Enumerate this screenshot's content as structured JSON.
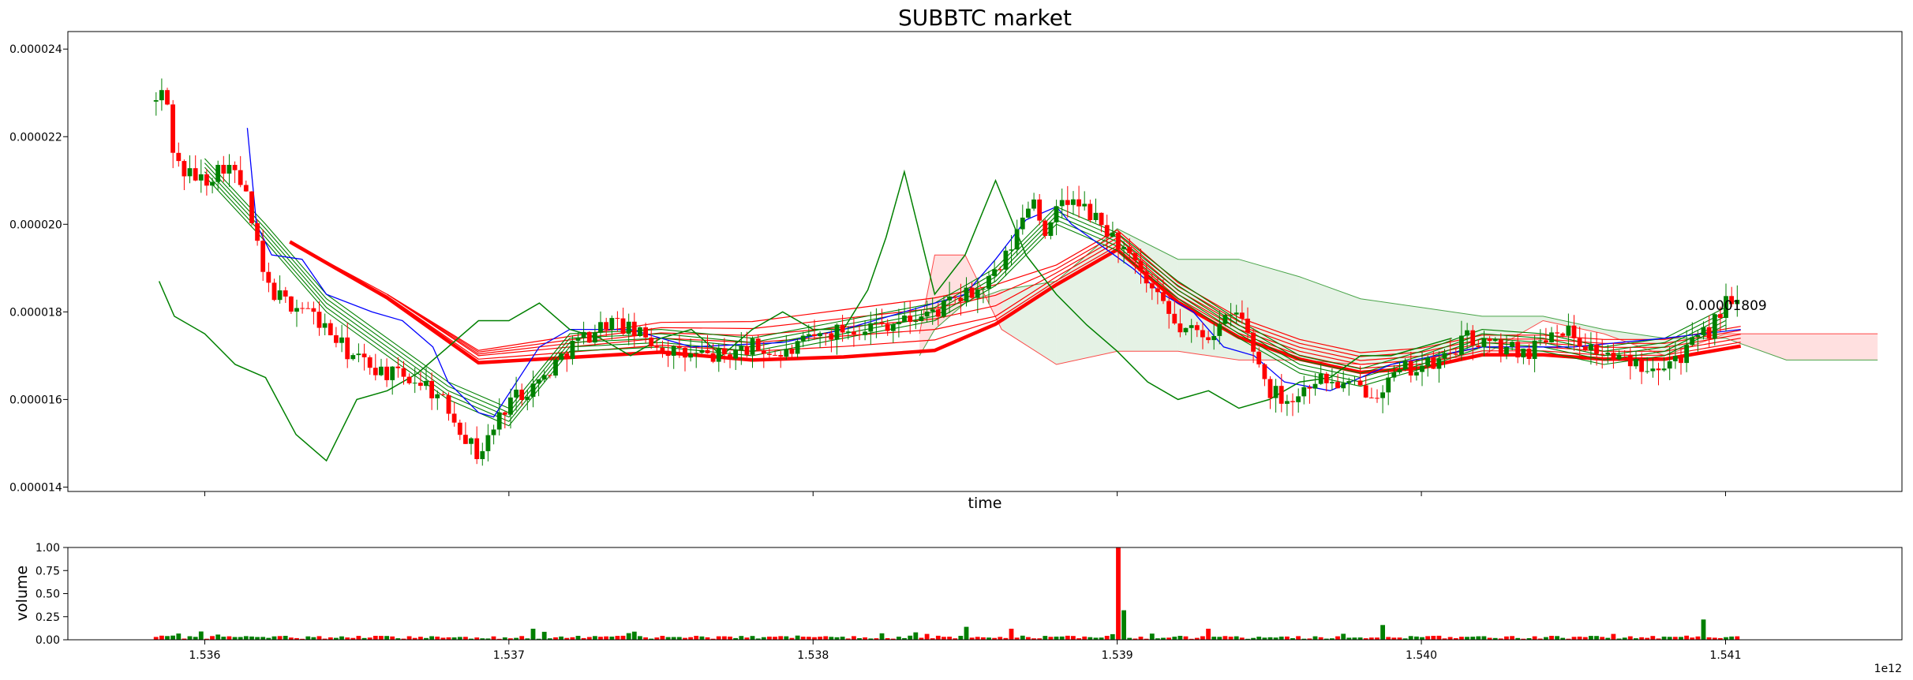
{
  "chart_data": [
    {
      "type": "candlestick",
      "title": "SUBBTC market",
      "xlabel": "time",
      "ylabel": "",
      "x_offset_label": "1e12",
      "xlim": [
        1.53555,
        1.54158
      ],
      "ylim": [
        1.39e-05,
        2.44e-05
      ],
      "xticks": [
        1.536,
        1.537,
        1.538,
        1.539,
        1.54,
        1.541
      ],
      "xtick_labels": [
        "1.536",
        "1.537",
        "1.538",
        "1.539",
        "1.540",
        "1.541"
      ],
      "yticks": [
        1.4e-05,
        1.6e-05,
        1.8e-05,
        2e-05,
        2.2e-05,
        2.4e-05
      ],
      "ytick_labels": [
        "0.000014",
        "0.000016",
        "0.000018",
        "0.000020",
        "0.000022",
        "0.000024"
      ],
      "last_price_label": "0.00001809",
      "colors": {
        "up": "#008000",
        "down": "#ff0000",
        "kijun": "#0000ff",
        "chikou": "#008000",
        "ema_fast": "#008000",
        "ema_slow": "#ff0000",
        "cloud_bull": "#008000",
        "cloud_bear": "#ff0000"
      },
      "close_path": {
        "x": [
          1.53584,
          1.53587,
          1.5359,
          1.53593,
          1.536,
          1.53607,
          1.53613,
          1.5362,
          1.53627,
          1.53633,
          1.5364,
          1.53648,
          1.5366,
          1.53672,
          1.5368,
          1.5369,
          1.537,
          1.5371,
          1.5372,
          1.53733,
          1.53745,
          1.53757,
          1.5377,
          1.5378,
          1.5379,
          1.538,
          1.5381,
          1.5382,
          1.5383,
          1.5384,
          1.53848,
          1.53855,
          1.53862,
          1.53867,
          1.53872,
          1.53877,
          1.53882,
          1.5389,
          1.539,
          1.5391,
          1.5392,
          1.5393,
          1.5394,
          1.5395,
          1.53958,
          1.53965,
          1.53975,
          1.53985,
          1.53995,
          1.54005,
          1.54015,
          1.54025,
          1.54035,
          1.54045,
          1.54055,
          1.54065,
          1.54075,
          1.54085,
          1.54095,
          1.541,
          1.54105
        ],
        "y": [
          2.28e-05,
          2.31e-05,
          2.15e-05,
          2.12e-05,
          2.1e-05,
          2.14e-05,
          2.08e-05,
          1.86e-05,
          1.82e-05,
          1.81e-05,
          1.76e-05,
          1.7e-05,
          1.66e-05,
          1.64e-05,
          1.58e-05,
          1.47e-05,
          1.6e-05,
          1.64e-05,
          1.72e-05,
          1.78e-05,
          1.74e-05,
          1.7e-05,
          1.7e-05,
          1.72e-05,
          1.7e-05,
          1.74e-05,
          1.76e-05,
          1.77e-05,
          1.78e-05,
          1.8e-05,
          1.83e-05,
          1.85e-05,
          1.9e-05,
          1.98e-05,
          2.07e-05,
          1.97e-05,
          2.06e-05,
          2.03e-05,
          1.96e-05,
          1.86e-05,
          1.76e-05,
          1.75e-05,
          1.8e-05,
          1.62e-05,
          1.6e-05,
          1.65e-05,
          1.63e-05,
          1.62e-05,
          1.67e-05,
          1.68e-05,
          1.74e-05,
          1.72e-05,
          1.71e-05,
          1.77e-05,
          1.72e-05,
          1.69e-05,
          1.68e-05,
          1.7e-05,
          1.76e-05,
          1.82e-05,
          1.809e-05
        ]
      },
      "kijun": {
        "x": [
          1.53614,
          1.53617,
          1.53622,
          1.53632,
          1.5364,
          1.53655,
          1.53665,
          1.53675,
          1.5368,
          1.5369,
          1.53695,
          1.5371,
          1.5372,
          1.5374,
          1.5376,
          1.5379,
          1.5381,
          1.5383,
          1.5385,
          1.5386,
          1.5387,
          1.5388,
          1.53885,
          1.53895,
          1.53905,
          1.53915,
          1.53925,
          1.53935,
          1.53945,
          1.53955,
          1.5397,
          1.5399,
          1.54005,
          1.5402,
          1.5403,
          1.5405,
          1.5408,
          1.54105
        ],
        "y": [
          2.22e-05,
          2e-05,
          1.93e-05,
          1.92e-05,
          1.84e-05,
          1.8e-05,
          1.78e-05,
          1.72e-05,
          1.64e-05,
          1.57e-05,
          1.56e-05,
          1.72e-05,
          1.76e-05,
          1.76e-05,
          1.72e-05,
          1.73e-05,
          1.76e-05,
          1.8e-05,
          1.84e-05,
          1.92e-05,
          2.01e-05,
          2.04e-05,
          2e-05,
          1.95e-05,
          1.9e-05,
          1.84e-05,
          1.8e-05,
          1.72e-05,
          1.7e-05,
          1.64e-05,
          1.62e-05,
          1.68e-05,
          1.7e-05,
          1.72e-05,
          1.72e-05,
          1.72e-05,
          1.74e-05,
          1.76e-05
        ]
      },
      "chikou": {
        "x": [
          1.53585,
          1.5359,
          1.536,
          1.5361,
          1.5362,
          1.5363,
          1.5364,
          1.5365,
          1.5366,
          1.5367,
          1.5368,
          1.5369,
          1.537,
          1.5371,
          1.5372,
          1.5373,
          1.5374,
          1.5375,
          1.5376,
          1.5377,
          1.5378,
          1.5379,
          1.538,
          1.5381,
          1.53818,
          1.53824,
          1.5383,
          1.5384,
          1.5385,
          1.5386,
          1.5387,
          1.5388,
          1.5389,
          1.539,
          1.5391,
          1.5392,
          1.5393,
          1.5394,
          1.5395,
          1.5396,
          1.5397,
          1.5398,
          1.5399,
          1.54,
          1.5401
        ],
        "y": [
          1.87e-05,
          1.79e-05,
          1.75e-05,
          1.68e-05,
          1.65e-05,
          1.52e-05,
          1.46e-05,
          1.6e-05,
          1.62e-05,
          1.66e-05,
          1.72e-05,
          1.78e-05,
          1.78e-05,
          1.82e-05,
          1.76e-05,
          1.74e-05,
          1.7e-05,
          1.74e-05,
          1.76e-05,
          1.7e-05,
          1.76e-05,
          1.8e-05,
          1.76e-05,
          1.76e-05,
          1.85e-05,
          1.97e-05,
          2.12e-05,
          1.84e-05,
          1.93e-05,
          2.1e-05,
          1.93e-05,
          1.84e-05,
          1.77e-05,
          1.71e-05,
          1.64e-05,
          1.6e-05,
          1.62e-05,
          1.58e-05,
          1.6e-05,
          1.64e-05,
          1.65e-05,
          1.7e-05,
          1.7e-05,
          1.72e-05,
          1.74e-05
        ]
      },
      "cloud_x": [
        1.53835,
        1.5384,
        1.5385,
        1.53862,
        1.5388,
        1.539,
        1.5392,
        1.5394,
        1.5396,
        1.5398,
        1.54,
        1.5402,
        1.5404,
        1.5406,
        1.5408,
        1.541,
        1.5412,
        1.5414,
        1.5415
      ],
      "cloud_span_a": [
        1.7e-05,
        1.76e-05,
        1.82e-05,
        1.85e-05,
        1.87e-05,
        1.99e-05,
        1.92e-05,
        1.92e-05,
        1.88e-05,
        1.83e-05,
        1.81e-05,
        1.79e-05,
        1.79e-05,
        1.76e-05,
        1.74e-05,
        1.74e-05,
        1.69e-05,
        1.69e-05,
        1.69e-05
      ],
      "cloud_span_b": [
        1.75e-05,
        1.93e-05,
        1.93e-05,
        1.76e-05,
        1.68e-05,
        1.71e-05,
        1.71e-05,
        1.69e-05,
        1.69e-05,
        1.68e-05,
        1.69e-05,
        1.7e-05,
        1.78e-05,
        1.75e-05,
        1.7e-05,
        1.75e-05,
        1.75e-05,
        1.75e-05,
        1.75e-05
      ],
      "ema_ribbons": {
        "fast_count": 5,
        "slow_count": 6,
        "fast_anchor_x": [
          1.536,
          1.5362,
          1.5364,
          1.5366,
          1.5368,
          1.537,
          1.5372,
          1.5375,
          1.5378,
          1.5381,
          1.5384,
          1.5386,
          1.5388,
          1.539,
          1.5392,
          1.5394,
          1.5396,
          1.5398,
          1.54,
          1.5402,
          1.5404,
          1.5406,
          1.5408,
          1.541
        ],
        "fast_anchor_y": [
          2.13e-05,
          1.98e-05,
          1.82e-05,
          1.72e-05,
          1.62e-05,
          1.56e-05,
          1.73e-05,
          1.74e-05,
          1.72e-05,
          1.76e-05,
          1.8e-05,
          1.88e-05,
          2.02e-05,
          1.96e-05,
          1.85e-05,
          1.76e-05,
          1.68e-05,
          1.65e-05,
          1.69e-05,
          1.74e-05,
          1.73e-05,
          1.7e-05,
          1.72e-05,
          1.79e-05
        ],
        "slow_anchor_x": [
          1.53628,
          1.5366,
          1.5369,
          1.5372,
          1.5375,
          1.5378,
          1.5381,
          1.5384,
          1.5386,
          1.5388,
          1.539,
          1.5392,
          1.5394,
          1.5396,
          1.5398,
          1.54,
          1.5402,
          1.5404,
          1.5406,
          1.5408,
          1.54105
        ],
        "slow_anchor_y": [
          1.96e-05,
          1.84e-05,
          1.7e-05,
          1.72e-05,
          1.74e-05,
          1.73e-05,
          1.745e-05,
          1.76e-05,
          1.79e-05,
          1.88e-05,
          1.96e-05,
          1.84e-05,
          1.76e-05,
          1.71e-05,
          1.68e-05,
          1.69e-05,
          1.72e-05,
          1.72e-05,
          1.71e-05,
          1.71e-05,
          1.74e-05
        ]
      }
    },
    {
      "type": "bar",
      "title": "",
      "xlabel": "",
      "ylabel": "volume",
      "ylim": [
        0,
        1.0
      ],
      "yticks": [
        0,
        0.25,
        0.5,
        0.75,
        1.0
      ],
      "ytick_labels": [
        "0.00",
        "0.25",
        "0.50",
        "0.75",
        "1.00"
      ],
      "bars_sampled": true,
      "peaks": [
        {
          "x": 1.539,
          "value": 1.0,
          "color": "#ff0000"
        },
        {
          "x": 1.53903,
          "value": 0.32,
          "color": "#008000"
        },
        {
          "x": 1.53988,
          "value": 0.16,
          "color": "#008000"
        },
        {
          "x": 1.5385,
          "value": 0.14,
          "color": "#008000"
        },
        {
          "x": 1.54092,
          "value": 0.22,
          "color": "#008000"
        },
        {
          "x": 1.53708,
          "value": 0.12,
          "color": "#008000"
        },
        {
          "x": 1.53865,
          "value": 0.12,
          "color": "#ff0000"
        },
        {
          "x": 1.5393,
          "value": 0.12,
          "color": "#ff0000"
        }
      ]
    }
  ]
}
